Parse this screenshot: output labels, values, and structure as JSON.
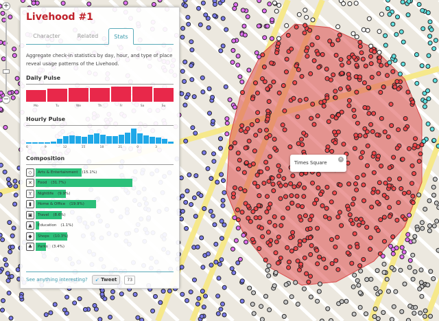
{
  "map": {
    "colors": {
      "land": "#ece8df",
      "street": "#ffffff",
      "avenue": "#f6e88a",
      "region": "#e05a5a",
      "dot_region": "#f0464a",
      "dot_pink": "#e070f0",
      "dot_white": "#ffffff",
      "dot_cyan": "#60e0e0",
      "dot_blue": "#7a7ae8",
      "dot_gray": "#c8c8c8"
    },
    "tooltip": "Times Square",
    "tooltip_close": "×",
    "zoom_in": "+",
    "zoom_out": "−"
  },
  "panel": {
    "title": "Livehood #1",
    "tabs": [
      {
        "label": "Character"
      },
      {
        "label": "Related"
      },
      {
        "label": "Stats"
      }
    ],
    "active_tab": "Stats",
    "description": "Aggregate check-in statistics by day, hour, and type of place reveal usage patterns of the Livehood.",
    "daily_title": "Daily Pulse",
    "hourly_title": "Hourly Pulse",
    "composition_title": "Composition",
    "see_anything": "See anything interesting?",
    "tweet_label": "Tweet",
    "tweet_count": "73"
  },
  "chart_data": [
    {
      "type": "bar",
      "title": "Daily Pulse",
      "categories": [
        "Mo",
        "Tu",
        "We",
        "Th",
        "Fr",
        "Sa",
        "Su"
      ],
      "values": [
        0.78,
        0.87,
        0.93,
        0.93,
        1.0,
        0.98,
        0.9
      ],
      "color": "#e8284a"
    },
    {
      "type": "bar",
      "title": "Hourly Pulse",
      "categories": [
        "6",
        "7",
        "8",
        "9",
        "10",
        "11",
        "12",
        "13",
        "14",
        "15",
        "16",
        "17",
        "18",
        "19",
        "20",
        "21",
        "22",
        "23",
        "0",
        "1",
        "2",
        "3",
        "4",
        "5"
      ],
      "tick_labels": [
        "6",
        "9",
        "12",
        "15",
        "18",
        "21",
        "0",
        "3"
      ],
      "values": [
        0.1,
        0.1,
        0.1,
        0.1,
        0.15,
        0.3,
        0.5,
        0.55,
        0.5,
        0.45,
        0.6,
        0.7,
        0.6,
        0.5,
        0.5,
        0.6,
        0.75,
        1.0,
        0.7,
        0.55,
        0.45,
        0.4,
        0.3,
        0.15
      ],
      "color": "#1fa8e8"
    },
    {
      "type": "bar",
      "title": "Composition",
      "categories": [
        "Arts & Entertainment",
        "Food",
        "Nightlife",
        "Home & Office",
        "Travel",
        "Education",
        "Shops",
        "Parks"
      ],
      "values": [
        15.1,
        31.7,
        9.9,
        19.9,
        8.6,
        1.1,
        10.3,
        3.4
      ],
      "value_labels": [
        "(15.1%)",
        "(31.7%)",
        "(9.9%)",
        "(19.9%)",
        "(8.6%)",
        "(1.1%)",
        "(10.3%)",
        "(3.4%)"
      ],
      "icons": [
        "ticket-icon",
        "fork-knife-icon",
        "cocktail-icon",
        "building-icon",
        "suitcase-icon",
        "graduation-cap-icon",
        "tag-icon",
        "tree-icon"
      ],
      "glyphs": [
        "◇",
        "✕",
        "Y",
        "▮",
        "▣",
        "▲",
        "◆",
        "♣"
      ],
      "color": "#2cc07a"
    }
  ]
}
